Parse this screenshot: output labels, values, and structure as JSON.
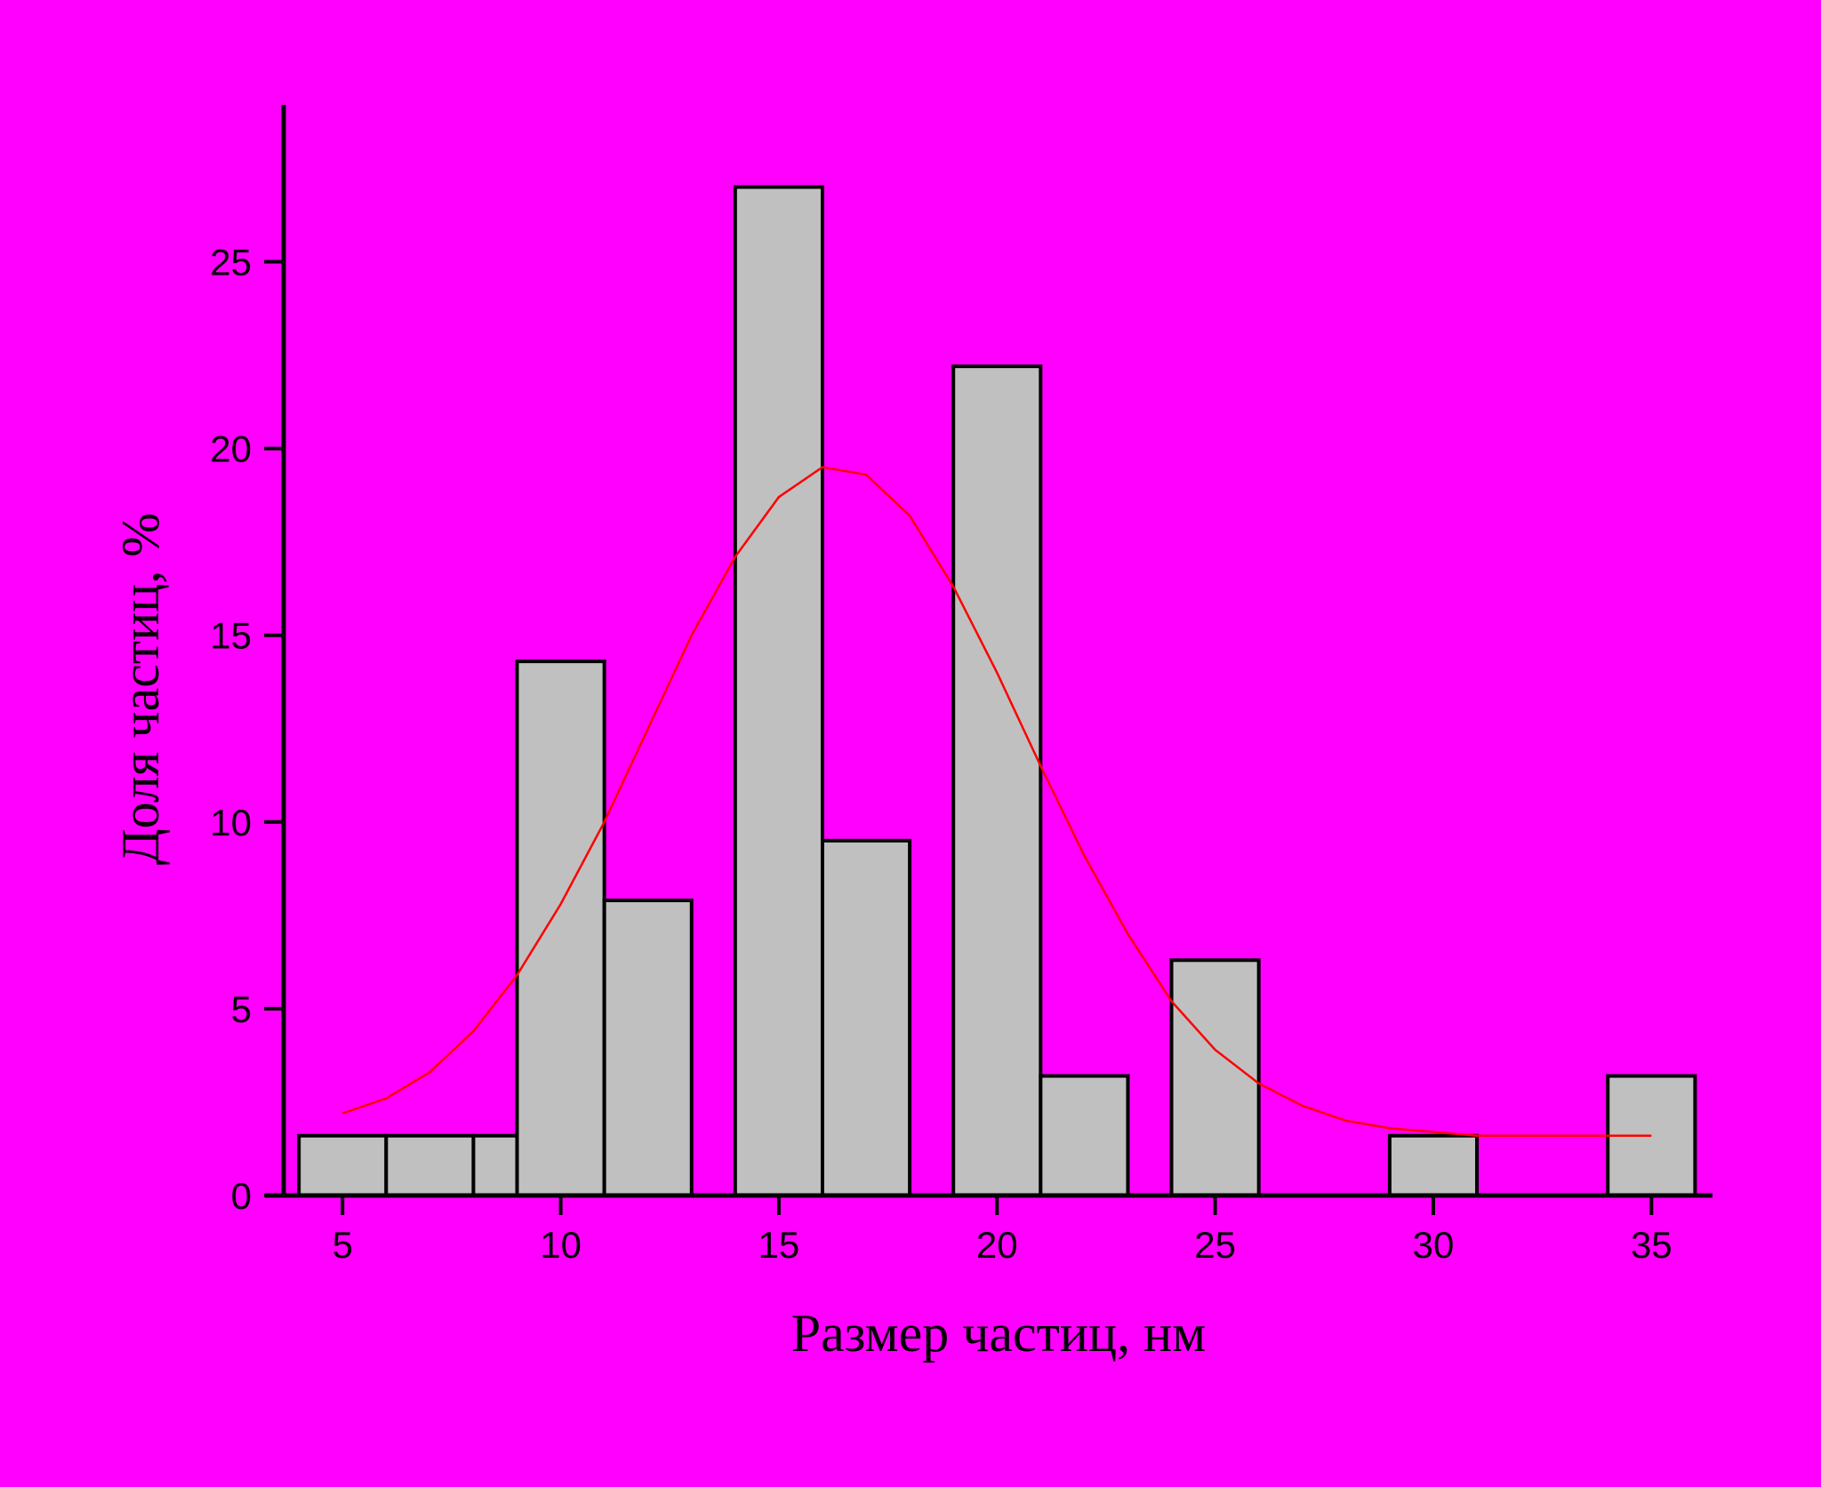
{
  "chart_data": {
    "type": "histogram",
    "x_label": "Размер частиц, нм",
    "y_label": "Доля частиц, %",
    "bins": [
      4,
      6,
      8,
      9,
      11,
      13,
      14,
      16,
      18,
      19,
      21,
      23,
      24,
      26,
      29,
      31,
      34,
      36
    ],
    "counts": [
      1.6,
      1.6,
      1.6,
      14.3,
      7.9,
      0,
      27,
      9.5,
      0,
      22.2,
      3.2,
      0,
      6.3,
      0,
      1.6,
      0,
      3.2
    ],
    "color": "#c0c0c0",
    "fit": {
      "color": "#ff0000",
      "x": [
        5,
        6,
        7,
        8,
        9,
        10,
        11,
        12,
        13,
        14,
        15,
        16,
        17,
        18,
        19,
        20,
        21,
        22,
        23,
        24,
        25,
        26,
        27,
        28,
        29,
        30,
        31,
        32,
        33,
        34,
        35
      ],
      "values": [
        2.2,
        2.6,
        3.3,
        4.4,
        5.9,
        7.8,
        10.0,
        12.5,
        15.0,
        17.1,
        18.7,
        19.5,
        19.3,
        18.2,
        16.3,
        14.0,
        11.5,
        9.1,
        7.0,
        5.2,
        3.9,
        3.0,
        2.4,
        2.0,
        1.8,
        1.7,
        1.6,
        1.6,
        1.6,
        1.6,
        1.6
      ]
    },
    "xlim": [
      3.65,
      36.4
    ],
    "ylim": [
      0,
      29.2
    ],
    "xticks": [
      5,
      10,
      15,
      20,
      25,
      30,
      35
    ],
    "yticks": [
      0,
      5,
      10,
      15,
      20,
      25
    ]
  }
}
